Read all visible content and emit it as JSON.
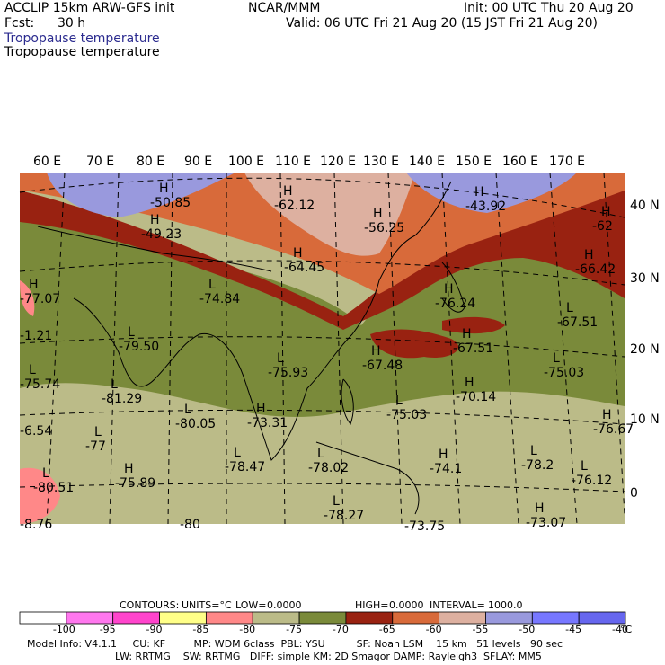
{
  "header": {
    "model": "ACCLIP 15km ARW-GFS init",
    "org": "NCAR/MMM",
    "init": "Init: 00 UTC Thu 20 Aug 20",
    "fcst_label": "Fcst:",
    "fcst_value": "30 h",
    "valid": "Valid: 06 UTC Fri 21 Aug 20 (15 JST Fri 21 Aug 20)",
    "field_title_1": "Tropopause temperature",
    "field_title_2": "Tropopause temperature"
  },
  "map": {
    "lon_labels": [
      "60 E",
      "70 E",
      "80 E",
      "90 E",
      "100 E",
      "110 E",
      "120 E",
      "130 E",
      "140 E",
      "150 E",
      "160 E",
      "170 E"
    ],
    "lat_labels": [
      "40 N",
      "30 N",
      "20 N",
      "10 N",
      "0"
    ],
    "contour_labels": [
      {
        "letter": "H",
        "value": "-50.85"
      },
      {
        "letter": "H",
        "value": "-62.12"
      },
      {
        "letter": "H",
        "value": "-43.92"
      },
      {
        "letter": "H",
        "value": "-49.23"
      },
      {
        "letter": "H",
        "value": "-56.25"
      },
      {
        "letter": "H",
        "value": "-62"
      },
      {
        "letter": "H",
        "value": "-64.45"
      },
      {
        "letter": "H",
        "value": "-66.42"
      },
      {
        "letter": "L",
        "value": "-74.84"
      },
      {
        "letter": "H",
        "value": "-77.07"
      },
      {
        "letter": "H",
        "value": "-76.24"
      },
      {
        "letter": "L",
        "value": "-67.51"
      },
      {
        "letter": "L",
        "value": "-79.50"
      },
      {
        "letter": "H",
        "value": "-67.51"
      },
      {
        "letter": "H",
        "value": "-67.48"
      },
      {
        "letter": "L",
        "value": "-75.93"
      },
      {
        "letter": "L",
        "value": "-75.03"
      },
      {
        "letter": "L",
        "value": "-75.74"
      },
      {
        "letter": "L",
        "value": "-81.29"
      },
      {
        "letter": "H",
        "value": "-70.14"
      },
      {
        "letter": "L",
        "value": "-80.05"
      },
      {
        "letter": "H",
        "value": "-73.31"
      },
      {
        "letter": "L",
        "value": "-75.03"
      },
      {
        "letter": "H",
        "value": "-76.67"
      },
      {
        "letter": "L",
        "value": "-77"
      },
      {
        "letter": "L",
        "value": "-80.51"
      },
      {
        "letter": "H",
        "value": "-75.89"
      },
      {
        "letter": "L",
        "value": "-78.47"
      },
      {
        "letter": "L",
        "value": "-78.02"
      },
      {
        "letter": "H",
        "value": "-74.1"
      },
      {
        "letter": "L",
        "value": "-78.2"
      },
      {
        "letter": "L",
        "value": "-76.12"
      },
      {
        "letter": "L",
        "value": "-78.27"
      },
      {
        "letter": "H",
        "value": "-73.07"
      },
      {
        "letter": "",
        "value": "-1.21"
      },
      {
        "letter": "",
        "value": "-6.54"
      },
      {
        "letter": "",
        "value": "-8.76"
      },
      {
        "letter": "",
        "value": "-80"
      },
      {
        "letter": "",
        "value": "-73.75"
      }
    ]
  },
  "contours_line": {
    "contours": "CONTOURS:",
    "units": "UNITS=°C",
    "low": "LOW=",
    "low_val": "0.0000",
    "high": "HIGH=",
    "high_val": "0.0000",
    "interval": "INTERVAL=",
    "interval_val": "1000.0"
  },
  "colorbar": {
    "unit": "°C",
    "labels": [
      "-100",
      "-95",
      "-90",
      "-85",
      "-80",
      "-75",
      "-70",
      "-65",
      "-60",
      "-55",
      "-50",
      "-45",
      "-40"
    ],
    "colors": [
      "#ffffff",
      "#ff77ee",
      "#ff44cc",
      "#ffff88",
      "#ff8888",
      "#bbbb88",
      "#7a8a3a",
      "#992211",
      "#d86a3a",
      "#ddb0a0",
      "#9999dd",
      "#7777ff",
      "#6666ee"
    ]
  },
  "footer": {
    "line1": "Model Info: V4.1.1     CU: KF         MP: WDM 6class  PBL: YSU          SF: Noah LSM    15 km   51 levels   90 sec",
    "line2": "LW: RRTMG    SW: RRTMG   DIFF: simple KM: 2D Smagor DAMP: Rayleigh3  SFLAY: MM5"
  }
}
